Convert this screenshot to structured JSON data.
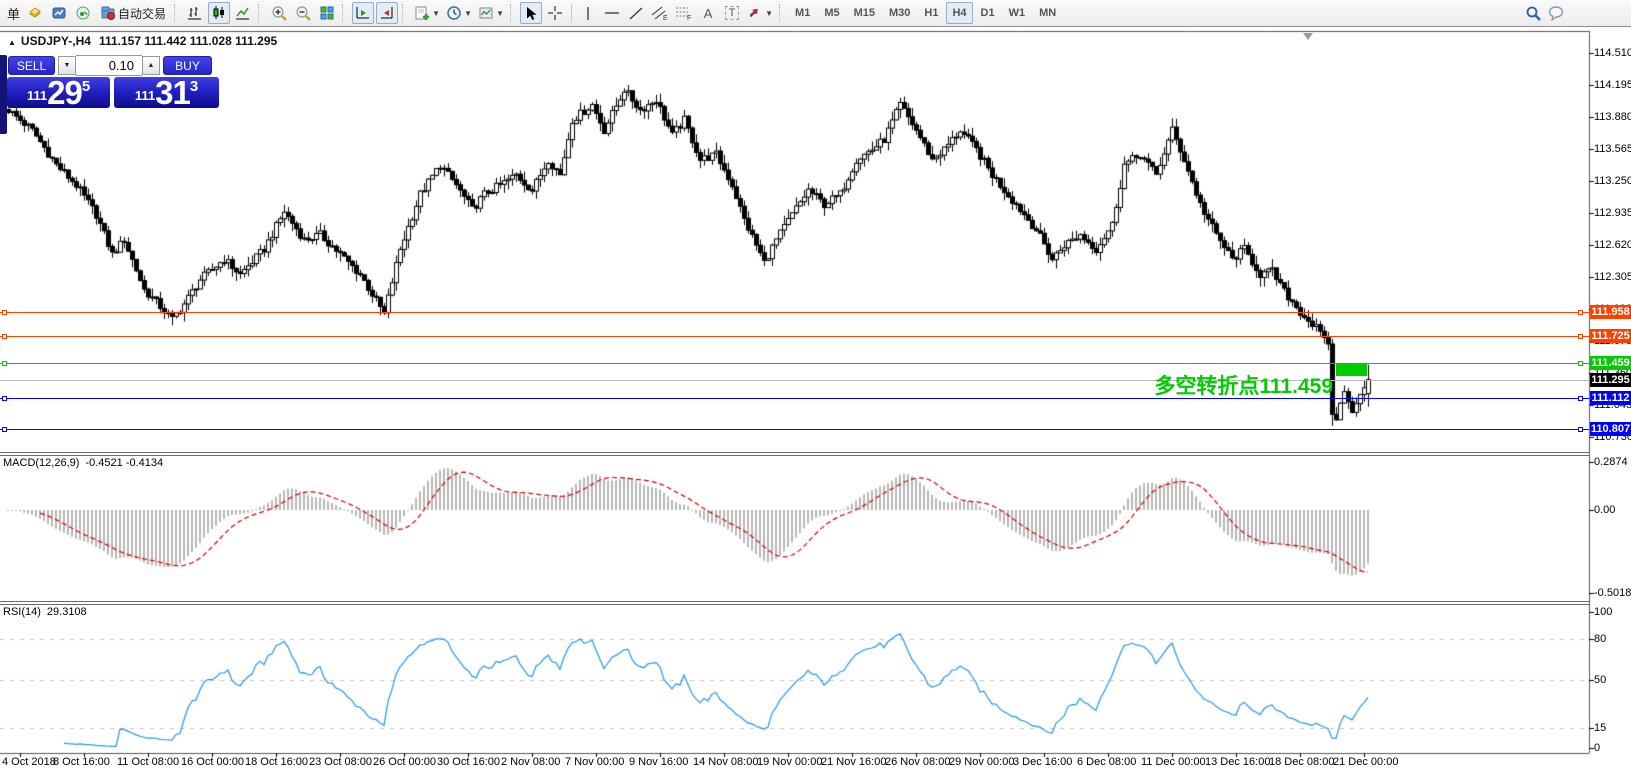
{
  "toolbar": {
    "order_char": "单",
    "autotrading_label": "自动交易",
    "text_tool": "A",
    "label_tool": "T",
    "channel_letter": "E",
    "fibo_letter": "F",
    "timeframes": [
      "M1",
      "M5",
      "M15",
      "M30",
      "H1",
      "H4",
      "D1",
      "W1",
      "MN"
    ],
    "active_timeframe": "H4"
  },
  "header": {
    "collapse_arrow": "▲",
    "symbol_period": "USDJPY-,H4",
    "ohlc": "111.157 111.442 111.028 111.295"
  },
  "trade_panel": {
    "sell_label": "SELL",
    "buy_label": "BUY",
    "volume": "0.10",
    "sell_price_small": "111",
    "sell_price_big": "29",
    "sell_price_sup": "5",
    "buy_price_small": "111",
    "buy_price_big": "31",
    "buy_price_sup": "3"
  },
  "annotation": {
    "text": "多空转折点111.459",
    "color": "#00CC00",
    "box_price": 111.459
  },
  "macd": {
    "name": "MACD(12,26,9)",
    "values": "-0.4521 -0.4134",
    "ticks": [
      {
        "v": 0.2874,
        "t": "0.2874"
      },
      {
        "v": 0,
        "t": "0.00"
      },
      {
        "v": -0.5018,
        "t": "-0.5018"
      }
    ]
  },
  "rsi": {
    "name": "RSI(14)",
    "value": "29.3108",
    "ticks": [
      {
        "v": 100,
        "t": "100"
      },
      {
        "v": 80,
        "t": "80"
      },
      {
        "v": 50,
        "t": "50"
      },
      {
        "v": 15,
        "t": "15"
      },
      {
        "v": 0,
        "t": "0"
      }
    ],
    "levels": [
      80,
      50,
      15
    ]
  },
  "chart_data": {
    "type": "candlestick+indicators",
    "symbol": "USDJPY-",
    "timeframe": "H4",
    "bars": 341,
    "current_price": 111.295,
    "current_bar": {
      "open": 111.157,
      "high": 111.442,
      "low": 111.028,
      "close": 111.295
    },
    "price_ticks": [
      "114.510",
      "114.195",
      "113.880",
      "113.565",
      "113.250",
      "112.935",
      "112.620",
      "112.305",
      "111.990",
      "111.675",
      "111.360",
      "111.045",
      "110.730"
    ],
    "h_lines": [
      {
        "price": 111.958,
        "color": "#FF4000"
      },
      {
        "price": 111.725,
        "color": "#FF4000"
      },
      {
        "price": 111.459,
        "color": "#00CC00"
      },
      {
        "price": 111.112,
        "color": "#0000FF"
      },
      {
        "price": 110.807,
        "color": "#0000FF"
      }
    ],
    "badges": [
      {
        "text": "111.958",
        "price": 111.958,
        "color": "#FF4000"
      },
      {
        "text": "111.725",
        "price": 111.725,
        "color": "#FF4000"
      },
      {
        "text": "111.459",
        "price": 111.459,
        "color": "#00CC00"
      },
      {
        "text": "111.295",
        "price": 111.295,
        "color": "#000000"
      },
      {
        "text": "111.112",
        "price": 111.112,
        "color": "#0000FF"
      },
      {
        "text": "110.807",
        "price": 110.807,
        "color": "#0000FF"
      }
    ],
    "close_anchors": [
      [
        0,
        113.95
      ],
      [
        6,
        113.75
      ],
      [
        12,
        113.41
      ],
      [
        17,
        113.21
      ],
      [
        22,
        112.92
      ],
      [
        26,
        112.53
      ],
      [
        29,
        112.67
      ],
      [
        34,
        112.18
      ],
      [
        41,
        111.89
      ],
      [
        44,
        112.04
      ],
      [
        48,
        112.28
      ],
      [
        54,
        112.48
      ],
      [
        58,
        112.33
      ],
      [
        64,
        112.58
      ],
      [
        69,
        112.95
      ],
      [
        74,
        112.67
      ],
      [
        78,
        112.72
      ],
      [
        83,
        112.53
      ],
      [
        88,
        112.33
      ],
      [
        94,
        111.94
      ],
      [
        98,
        112.58
      ],
      [
        103,
        113.12
      ],
      [
        108,
        113.41
      ],
      [
        112,
        113.21
      ],
      [
        116,
        112.97
      ],
      [
        119,
        113.12
      ],
      [
        123,
        113.21
      ],
      [
        127,
        113.31
      ],
      [
        131,
        113.16
      ],
      [
        135,
        113.46
      ],
      [
        138,
        113.31
      ],
      [
        141,
        113.85
      ],
      [
        146,
        114.0
      ],
      [
        149,
        113.75
      ],
      [
        154,
        114.15
      ],
      [
        158,
        113.95
      ],
      [
        162,
        114.05
      ],
      [
        166,
        113.7
      ],
      [
        169,
        113.85
      ],
      [
        173,
        113.46
      ],
      [
        177,
        113.51
      ],
      [
        181,
        113.21
      ],
      [
        184,
        112.87
      ],
      [
        189,
        112.45
      ],
      [
        192,
        112.67
      ],
      [
        196,
        112.92
      ],
      [
        200,
        113.16
      ],
      [
        204,
        113.02
      ],
      [
        208,
        113.12
      ],
      [
        212,
        113.46
      ],
      [
        216,
        113.56
      ],
      [
        219,
        113.66
      ],
      [
        223,
        114.0
      ],
      [
        227,
        113.75
      ],
      [
        231,
        113.46
      ],
      [
        234,
        113.56
      ],
      [
        238,
        113.75
      ],
      [
        242,
        113.56
      ],
      [
        246,
        113.31
      ],
      [
        249,
        113.16
      ],
      [
        253,
        112.97
      ],
      [
        257,
        112.77
      ],
      [
        261,
        112.48
      ],
      [
        264,
        112.62
      ],
      [
        268,
        112.72
      ],
      [
        272,
        112.58
      ],
      [
        276,
        112.82
      ],
      [
        279,
        113.41
      ],
      [
        283,
        113.51
      ],
      [
        287,
        113.31
      ],
      [
        291,
        113.75
      ],
      [
        294,
        113.46
      ],
      [
        298,
        113.02
      ],
      [
        302,
        112.72
      ],
      [
        306,
        112.48
      ],
      [
        309,
        112.58
      ],
      [
        313,
        112.33
      ],
      [
        316,
        112.36
      ],
      [
        319,
        112.16
      ],
      [
        323,
        111.96
      ],
      [
        327,
        111.8
      ],
      [
        330,
        111.65
      ],
      [
        331,
        110.95
      ],
      [
        332,
        110.9
      ],
      [
        333,
        111.07
      ],
      [
        334,
        111.17
      ],
      [
        336,
        110.98
      ],
      [
        338,
        111.15
      ],
      [
        340,
        111.295
      ]
    ],
    "macd_params": {
      "fast": 12,
      "slow": 26,
      "signal": 9,
      "current": -0.4521,
      "signal_current": -0.4134
    },
    "rsi_params": {
      "period": 14,
      "current": 29.3108
    },
    "time_labels": [
      "4 Oct 2018",
      "8 Oct 16:00",
      "11 Oct 08:00",
      "16 Oct 00:00",
      "18 Oct 16:00",
      "23 Oct 08:00",
      "26 Oct 00:00",
      "30 Oct 16:00",
      "2 Nov 08:00",
      "7 Nov 00:00",
      "9 Nov 16:00",
      "14 Nov 08:00",
      "19 Nov 00:00",
      "21 Nov 16:00",
      "26 Nov 08:00",
      "29 Nov 00:00",
      "3 Dec 16:00",
      "6 Dec 08:00",
      "11 Dec 00:00",
      "13 Dec 16:00",
      "18 Dec 08:00",
      "21 Dec 00:00"
    ]
  }
}
